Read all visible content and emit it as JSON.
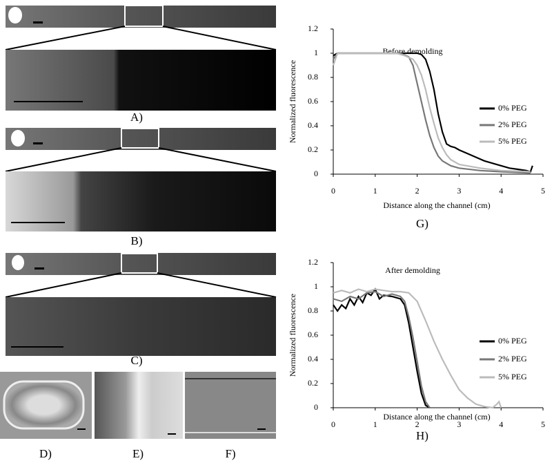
{
  "panels": [
    "A)",
    "B)",
    "C)",
    "D)",
    "E)",
    "F)"
  ],
  "chart_data": [
    {
      "type": "line",
      "title": "Before demolding",
      "x_label": "Distance along the channel (cm)",
      "y_label": "Normalized fluorescence",
      "panel": "G)",
      "xlim": [
        0,
        5
      ],
      "xticks": [
        0,
        1,
        2,
        3,
        4,
        5
      ],
      "ylim": [
        0,
        1.2
      ],
      "yticks": [
        0,
        0.2,
        0.4,
        0.6,
        0.8,
        1,
        1.2
      ],
      "legend": "right",
      "series": [
        {
          "name": "0% PEG",
          "color": "#000000",
          "x": [
            0,
            0.1,
            1,
            2,
            2.1,
            2.2,
            2.3,
            2.4,
            2.5,
            2.6,
            2.7,
            2.8,
            2.9,
            3,
            3.2,
            3.4,
            3.6,
            3.8,
            4,
            4.2,
            4.4,
            4.6,
            4.7,
            4.75
          ],
          "values": [
            0.98,
            1,
            1,
            1,
            0.99,
            0.95,
            0.85,
            0.7,
            0.5,
            0.35,
            0.25,
            0.23,
            0.22,
            0.2,
            0.17,
            0.14,
            0.11,
            0.09,
            0.07,
            0.05,
            0.04,
            0.03,
            0.02,
            0.07
          ]
        },
        {
          "name": "2% PEG",
          "color": "#777777",
          "x": [
            0,
            0.1,
            1,
            1.6,
            1.8,
            1.9,
            2,
            2.1,
            2.2,
            2.3,
            2.4,
            2.5,
            2.6,
            2.8,
            3,
            3.5,
            4,
            4.7
          ],
          "values": [
            0.95,
            1,
            1,
            1,
            0.97,
            0.9,
            0.75,
            0.6,
            0.45,
            0.32,
            0.22,
            0.15,
            0.11,
            0.07,
            0.05,
            0.03,
            0.02,
            0.01
          ]
        },
        {
          "name": "5% PEG",
          "color": "#bbbbbb",
          "x": [
            0,
            0.1,
            1.5,
            1.7,
            1.9,
            2,
            2.1,
            2.2,
            2.3,
            2.4,
            2.5,
            2.6,
            2.7,
            2.8,
            3,
            3.5,
            4,
            4.7
          ],
          "values": [
            0.9,
            1,
            1,
            0.98,
            0.95,
            0.9,
            0.82,
            0.7,
            0.55,
            0.42,
            0.3,
            0.22,
            0.16,
            0.12,
            0.08,
            0.05,
            0.03,
            0.02
          ]
        }
      ]
    },
    {
      "type": "line",
      "title": "After demolding",
      "x_label": "Distance along the channel (cm)",
      "y_label": "Normalized fluorescence",
      "panel": "H)",
      "xlim": [
        0,
        5
      ],
      "xticks": [
        0,
        1,
        2,
        3,
        4,
        5
      ],
      "ylim": [
        0,
        1.2
      ],
      "yticks": [
        0,
        0.2,
        0.4,
        0.6,
        0.8,
        1,
        1.2
      ],
      "legend": "right",
      "series": [
        {
          "name": "0% PEG",
          "color": "#000000",
          "x": [
            0,
            0.1,
            0.2,
            0.3,
            0.4,
            0.5,
            0.6,
            0.7,
            0.8,
            0.9,
            1,
            1.1,
            1.2,
            1.4,
            1.6,
            1.7,
            1.8,
            1.9,
            2,
            2.1,
            2.2,
            2.3
          ],
          "values": [
            0.85,
            0.8,
            0.85,
            0.82,
            0.9,
            0.85,
            0.92,
            0.87,
            0.95,
            0.93,
            0.98,
            0.9,
            0.93,
            0.92,
            0.9,
            0.85,
            0.7,
            0.5,
            0.3,
            0.12,
            0.02,
            0
          ]
        },
        {
          "name": "2% PEG",
          "color": "#777777",
          "x": [
            0,
            0.2,
            0.4,
            0.6,
            0.8,
            1,
            1.2,
            1.4,
            1.6,
            1.7,
            1.8,
            1.9,
            2,
            2.1,
            2.2,
            2.3
          ],
          "values": [
            0.9,
            0.88,
            0.92,
            0.9,
            0.95,
            0.96,
            0.92,
            0.94,
            0.92,
            0.88,
            0.75,
            0.58,
            0.38,
            0.18,
            0.05,
            0
          ]
        },
        {
          "name": "5% PEG",
          "color": "#bbbbbb",
          "x": [
            0,
            0.2,
            0.4,
            0.6,
            0.8,
            1,
            1.2,
            1.4,
            1.6,
            1.8,
            2,
            2.2,
            2.4,
            2.6,
            2.8,
            3,
            3.2,
            3.4,
            3.6,
            3.8,
            3.9,
            3.95,
            4
          ],
          "values": [
            0.95,
            0.97,
            0.95,
            0.98,
            0.96,
            0.98,
            0.97,
            0.96,
            0.96,
            0.95,
            0.88,
            0.72,
            0.55,
            0.4,
            0.27,
            0.15,
            0.08,
            0.03,
            0.01,
            0,
            0.03,
            0.05,
            0
          ]
        }
      ]
    }
  ]
}
